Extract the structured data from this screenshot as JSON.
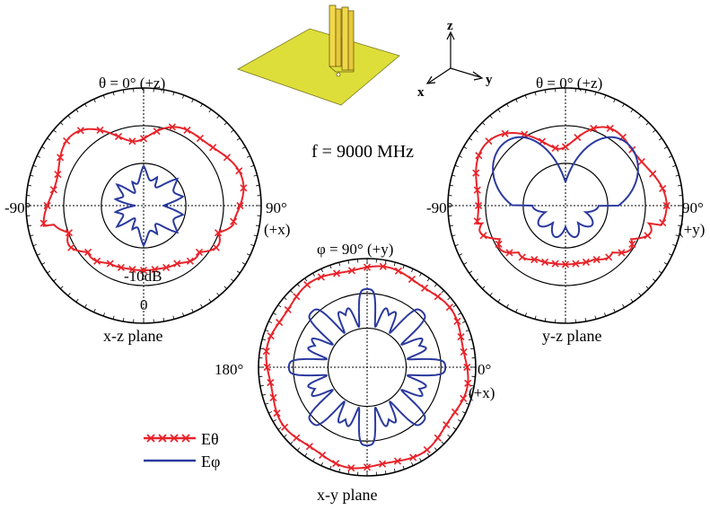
{
  "frequency_label": "f = 9000 MHz",
  "axes_triad": {
    "z": "z",
    "y": "y",
    "x": "x"
  },
  "colors": {
    "e_theta": "#e8232a",
    "e_phi": "#2b3a9e",
    "plate": "#dede3a",
    "antenna": "#f0d84a"
  },
  "legend": [
    {
      "label": "Eθ",
      "marker": "cross",
      "color": "#e8232a"
    },
    {
      "label": "Eφ",
      "marker": "none",
      "color": "#2b3a9e"
    }
  ],
  "plots": {
    "xz": {
      "top_label": "θ = 0° (+z)",
      "left_label": "-90°",
      "right_label": "90°",
      "right_sub": "(+x)",
      "ring_label": "-10dB",
      "zero_label": "0",
      "title": "x-z plane"
    },
    "yz": {
      "top_label": "θ = 0° (+z)",
      "left_label": "-90°",
      "right_label": "90°",
      "right_sub": "(+y)",
      "title": "y-z plane"
    },
    "xy": {
      "top_label": "φ = 90° (+y)",
      "left_label": "180°",
      "right_label": "0°",
      "right_sub": "(+x)",
      "title": "x-y plane"
    }
  }
}
